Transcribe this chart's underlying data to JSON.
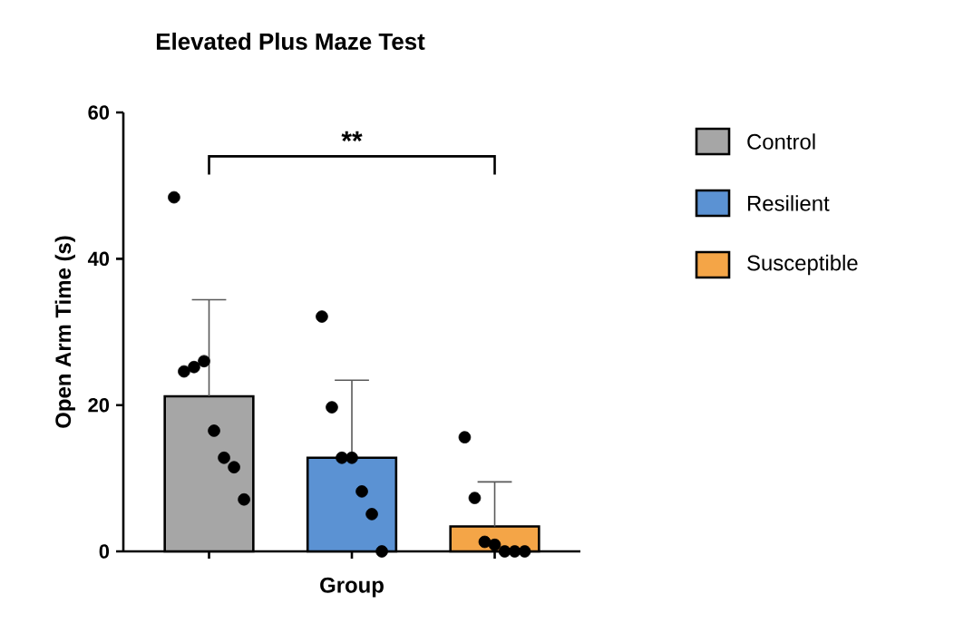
{
  "chart_data": {
    "type": "bar",
    "title": "Elevated Plus Maze Test",
    "xlabel": "Group",
    "ylabel": "Open Arm Time (s)",
    "categories": [
      null,
      null,
      null
    ],
    "series": [
      {
        "name": "Control",
        "color": "#a6a6a6",
        "values": [
          21.2,
          null,
          null
        ],
        "errors": [
          [
            21.2,
            34.4
          ],
          null,
          null
        ]
      },
      {
        "name": "Resilient",
        "color": "#5b92d3",
        "values": [
          null,
          12.8,
          null
        ],
        "errors": [
          null,
          [
            12.8,
            23.4
          ],
          null
        ]
      },
      {
        "name": "Susceptible",
        "color": "#f4a547",
        "values": [
          null,
          null,
          3.4
        ],
        "errors": [
          null,
          null,
          [
            3.4,
            9.5
          ]
        ]
      },
      {
        "type": "scatter",
        "color": "#000000",
        "values": [
          48.4,
          32.1,
          15.6
        ]
      },
      {
        "type": "scatter",
        "color": "#000000",
        "values": [
          24.6,
          19.7,
          7.3
        ]
      },
      {
        "type": "scatter",
        "color": "#000000",
        "values": [
          25.2,
          12.8,
          1.3
        ]
      },
      {
        "type": "scatter",
        "color": "#000000",
        "values": [
          26.0,
          12.8,
          0.9
        ]
      },
      {
        "type": "scatter",
        "color": "#000000",
        "values": [
          16.5,
          8.2,
          0
        ]
      },
      {
        "type": "scatter",
        "color": "#000000",
        "values": [
          12.8,
          5.1,
          0
        ]
      },
      {
        "type": "scatter",
        "color": "#000000",
        "values": [
          11.5,
          0,
          0
        ]
      },
      {
        "type": "scatter",
        "color": "#000000",
        "values": [
          7.1,
          null,
          null
        ]
      }
    ],
    "ylim": [
      0,
      60
    ],
    "yticks": [
      0,
      20,
      40,
      60
    ],
    "grid": false,
    "legend": "right",
    "annotations": [
      "**"
    ]
  }
}
